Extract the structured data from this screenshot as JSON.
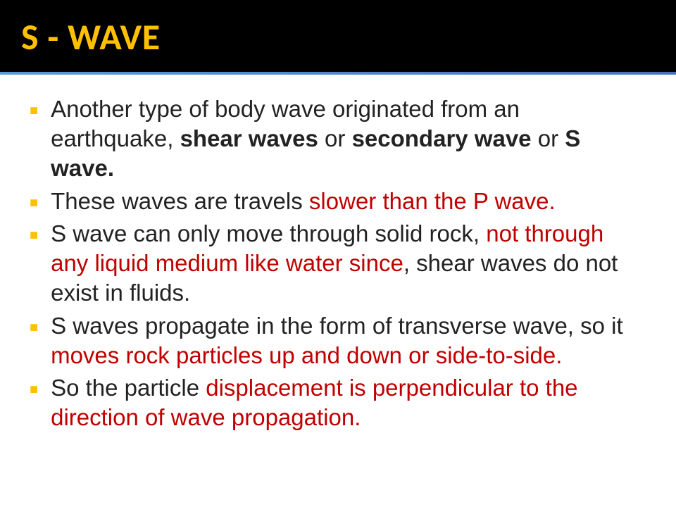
{
  "title": "S - WAVE",
  "colors": {
    "title_color": "#ffc000",
    "header_bg": "#000000",
    "body_bg": "#ffffff",
    "text_color": "#222222",
    "highlight_color": "#c00000",
    "bullet_color": "#ffc000",
    "border_gradient_from": "#5b9bd5",
    "border_gradient_to": "#4472c4"
  },
  "typography": {
    "title_fontsize": 52,
    "title_weight": 700,
    "body_fontsize": 33,
    "body_weight": 400,
    "line_height": 1.28
  },
  "bullets": [
    {
      "segments": [
        {
          "text": "Another type of body wave originated from an earthquake, "
        },
        {
          "text": "shear waves",
          "bold": true
        },
        {
          "text": " or "
        },
        {
          "text": "secondary wave",
          "bold": true
        },
        {
          "text": " or "
        },
        {
          "text": "S wave.",
          "bold": true
        }
      ]
    },
    {
      "segments": [
        {
          "text": "These waves are travels "
        },
        {
          "text": "slower than the P wave.",
          "red": true
        }
      ]
    },
    {
      "segments": [
        {
          "text": "S wave can only move through solid rock, "
        },
        {
          "text": "not through any liquid medium like water since",
          "red": true
        },
        {
          "text": ", shear waves do not exist in fluids."
        }
      ]
    },
    {
      "segments": [
        {
          "text": "S waves propagate in the form of transverse wave, so it "
        },
        {
          "text": "moves rock particles up and down or side-to-side.",
          "red": true
        }
      ]
    },
    {
      "segments": [
        {
          "text": "So the particle "
        },
        {
          "text": "displacement is perpendicular to the direction of wave propagation.",
          "red": true
        }
      ]
    }
  ]
}
